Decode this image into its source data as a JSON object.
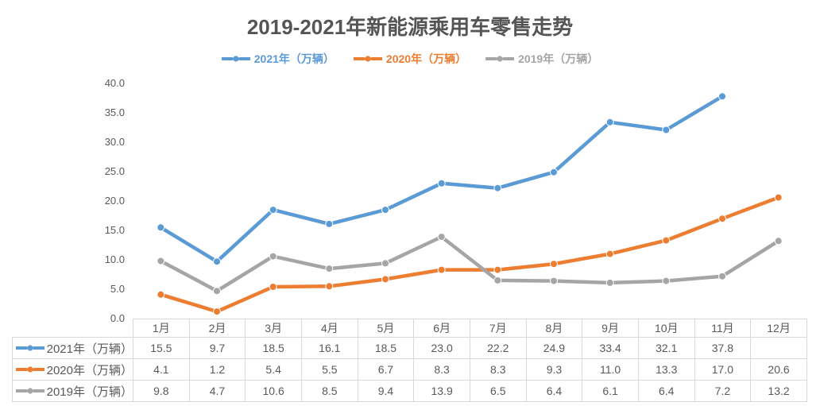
{
  "chart_data": {
    "type": "line",
    "title": "2019-2021年新能源乘用车零售走势",
    "categories": [
      "1月",
      "2月",
      "3月",
      "4月",
      "5月",
      "6月",
      "7月",
      "8月",
      "9月",
      "10月",
      "11月",
      "12月"
    ],
    "series": [
      {
        "name": "2021年（万辆）",
        "color": "#5B9BD5",
        "values": [
          15.5,
          9.7,
          18.5,
          16.1,
          18.5,
          23.0,
          22.2,
          24.9,
          33.4,
          32.1,
          37.8,
          null
        ]
      },
      {
        "name": "2020年（万辆）",
        "color": "#ED7D31",
        "values": [
          4.1,
          1.2,
          5.4,
          5.5,
          6.7,
          8.3,
          8.3,
          9.3,
          11.0,
          13.3,
          17.0,
          20.6
        ]
      },
      {
        "name": "2019年（万辆）",
        "color": "#A5A5A5",
        "values": [
          9.8,
          4.7,
          10.6,
          8.5,
          9.4,
          13.9,
          6.5,
          6.4,
          6.1,
          6.4,
          7.2,
          13.2
        ]
      }
    ],
    "xlabel": "",
    "ylabel": "",
    "ylim": [
      0,
      40
    ],
    "y_tick_step": 5,
    "y_tick_labels": [
      "0.0",
      "5.0",
      "10.0",
      "15.0",
      "20.0",
      "25.0",
      "30.0",
      "35.0",
      "40.0"
    ],
    "grid": false,
    "legend_position": "top",
    "marker": "circle",
    "data_table_shown": true
  },
  "colors": {
    "title_text": "#555555",
    "axis_text": "#595959",
    "table_text": "#595959",
    "table_border": "#D9D9D9",
    "background": "#FFFFFF"
  }
}
